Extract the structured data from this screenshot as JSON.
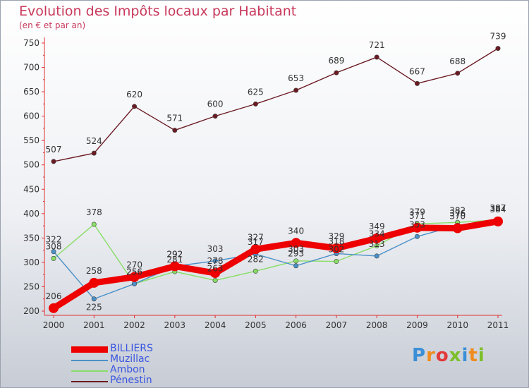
{
  "header": {
    "title": "Evolution des Impôts locaux par Habitant",
    "subtitle": "(en € et par an)"
  },
  "logo": {
    "text": "Proxiti"
  },
  "chart_data": {
    "type": "line",
    "title": "Evolution des Impôts locaux par Habitant",
    "subtitle": "(en € et par an)",
    "xlabel": "",
    "ylabel": "",
    "x": [
      2000,
      2001,
      2002,
      2003,
      2004,
      2005,
      2006,
      2007,
      2008,
      2009,
      2010,
      2011
    ],
    "ylim": [
      200,
      750
    ],
    "yticks": [
      200,
      250,
      300,
      350,
      400,
      450,
      500,
      550,
      600,
      650,
      700,
      750
    ],
    "grid": false,
    "legend_position": "bottom-left",
    "series": [
      {
        "name": "BILLIERS",
        "color": "#ee0000",
        "values": [
          206,
          258,
          270,
          292,
          278,
          327,
          340,
          329,
          349,
          371,
          370,
          384
        ]
      },
      {
        "name": "Muzillac",
        "color": "#4a90c8",
        "values": [
          322,
          225,
          256,
          292,
          303,
          317,
          293,
          318,
          313,
          353,
          376,
          387
        ]
      },
      {
        "name": "Ambon",
        "color": "#88dd66",
        "values": [
          308,
          378,
          256,
          281,
          263,
          282,
          303,
          302,
          334,
          379,
          382,
          387
        ]
      },
      {
        "name": "Pénestin",
        "color": "#6b1a22",
        "values": [
          507,
          524,
          620,
          571,
          600,
          625,
          653,
          689,
          721,
          667,
          688,
          739
        ]
      }
    ]
  }
}
